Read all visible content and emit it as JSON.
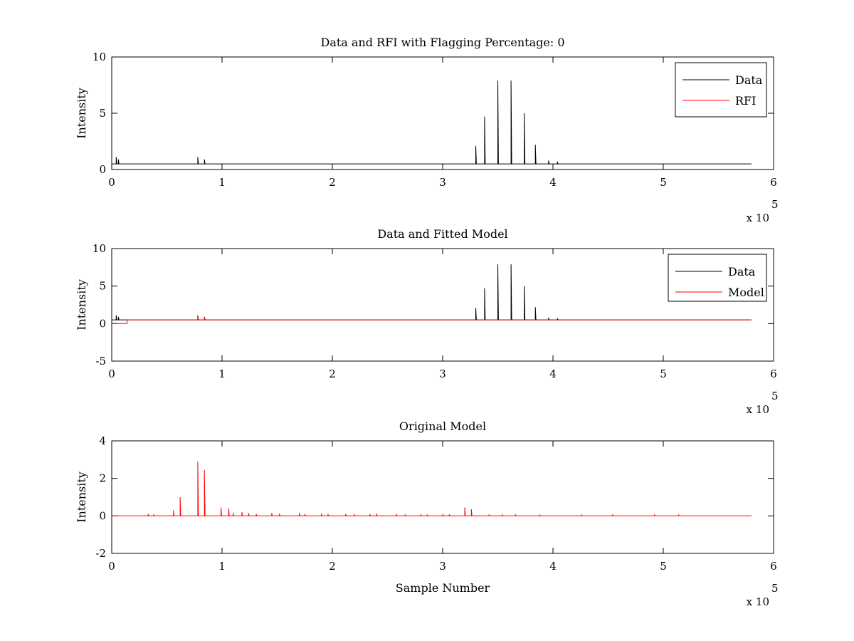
{
  "chart_data": [
    {
      "type": "line",
      "title": "Data and RFI with Flagging Percentage: 0",
      "xlabel": "",
      "ylabel": "Intensity",
      "xlim": [
        0,
        600000
      ],
      "ylim": [
        0,
        10
      ],
      "xtick_labels": [
        "0",
        "1",
        "2",
        "3",
        "4",
        "5",
        "6"
      ],
      "ytick_labels": [
        "0",
        "5",
        "10"
      ],
      "x_multiplier": {
        "base": "x 10",
        "exponent": "5"
      },
      "grid": false,
      "legend_position": "top-right",
      "legend": [
        {
          "name": "Data",
          "color": "#000000"
        },
        {
          "name": "RFI",
          "color": "#ff0000"
        }
      ],
      "series": [
        {
          "name": "Data",
          "color": "#000000",
          "baseline": 0.5,
          "spikes": [
            [
              4000,
              1.1
            ],
            [
              6000,
              0.9
            ],
            [
              78000,
              1.1
            ],
            [
              84000,
              0.9
            ],
            [
              330000,
              2.1
            ],
            [
              338000,
              4.7
            ],
            [
              350000,
              7.9
            ],
            [
              362000,
              7.9
            ],
            [
              374000,
              5.0
            ],
            [
              384000,
              2.2
            ],
            [
              396000,
              0.8
            ],
            [
              404000,
              0.7
            ]
          ]
        },
        {
          "name": "RFI",
          "color": "#ff0000",
          "points": []
        }
      ]
    },
    {
      "type": "line",
      "title": "Data and Fitted Model",
      "xlabel": "",
      "ylabel": "Intensity",
      "xlim": [
        0,
        600000
      ],
      "ylim": [
        -5,
        10
      ],
      "xtick_labels": [
        "0",
        "1",
        "2",
        "3",
        "4",
        "5",
        "6"
      ],
      "ytick_labels": [
        "-5",
        "0",
        "5",
        "10"
      ],
      "x_multiplier": {
        "base": "x 10",
        "exponent": "5"
      },
      "grid": false,
      "legend_position": "top-right",
      "legend": [
        {
          "name": "Data",
          "color": "#000000"
        },
        {
          "name": "Model",
          "color": "#ff0000"
        }
      ],
      "series": [
        {
          "name": "Data",
          "color": "#000000",
          "baseline": 0.5,
          "spikes": [
            [
              4000,
              1.1
            ],
            [
              6000,
              0.9
            ],
            [
              78000,
              1.1
            ],
            [
              84000,
              0.9
            ],
            [
              330000,
              2.1
            ],
            [
              338000,
              4.7
            ],
            [
              350000,
              7.9
            ],
            [
              362000,
              7.9
            ],
            [
              374000,
              5.0
            ],
            [
              384000,
              2.2
            ],
            [
              396000,
              0.8
            ],
            [
              404000,
              0.7
            ]
          ]
        },
        {
          "name": "Model",
          "color": "#ff0000",
          "baseline": 0.5,
          "offset_segment": {
            "x_start": 0,
            "x_end": 14000,
            "y": 0.0
          },
          "spikes": [
            [
              78000,
              1.0
            ],
            [
              84000,
              0.8
            ]
          ]
        }
      ]
    },
    {
      "type": "line",
      "title": "Original Model",
      "xlabel": "Sample Number",
      "ylabel": "Intensity",
      "xlim": [
        0,
        600000
      ],
      "ylim": [
        -2,
        4
      ],
      "xtick_labels": [
        "0",
        "1",
        "2",
        "3",
        "4",
        "5",
        "6"
      ],
      "ytick_labels": [
        "-2",
        "0",
        "2",
        "4"
      ],
      "x_multiplier": {
        "base": "x 10",
        "exponent": "5"
      },
      "grid": false,
      "legend_position": "none",
      "series": [
        {
          "name": "",
          "color": "#ff0000",
          "baseline": 0.0,
          "x_end": 580000,
          "spikes": [
            [
              33000,
              0.1
            ],
            [
              38000,
              0.05
            ],
            [
              56000,
              0.3
            ],
            [
              62000,
              1.0
            ],
            [
              78000,
              2.9
            ],
            [
              84000,
              2.45
            ],
            [
              99000,
              0.45
            ],
            [
              106000,
              0.4
            ],
            [
              110000,
              0.15
            ],
            [
              118000,
              0.2
            ],
            [
              124000,
              0.15
            ],
            [
              131000,
              0.1
            ],
            [
              145000,
              0.15
            ],
            [
              152000,
              0.12
            ],
            [
              170000,
              0.15
            ],
            [
              175000,
              0.1
            ],
            [
              190000,
              0.12
            ],
            [
              196000,
              0.1
            ],
            [
              212000,
              0.1
            ],
            [
              220000,
              0.08
            ],
            [
              234000,
              0.1
            ],
            [
              240000,
              0.12
            ],
            [
              258000,
              0.1
            ],
            [
              266000,
              0.08
            ],
            [
              280000,
              0.08
            ],
            [
              286000,
              0.07
            ],
            [
              300000,
              0.1
            ],
            [
              306000,
              0.08
            ],
            [
              320000,
              0.45
            ],
            [
              326000,
              0.35
            ],
            [
              342000,
              0.08
            ],
            [
              354000,
              0.06
            ],
            [
              366000,
              0.06
            ],
            [
              388000,
              0.05
            ],
            [
              426000,
              0.05
            ],
            [
              454000,
              0.05
            ],
            [
              492000,
              0.05
            ],
            [
              514000,
              0.05
            ]
          ]
        }
      ]
    }
  ]
}
